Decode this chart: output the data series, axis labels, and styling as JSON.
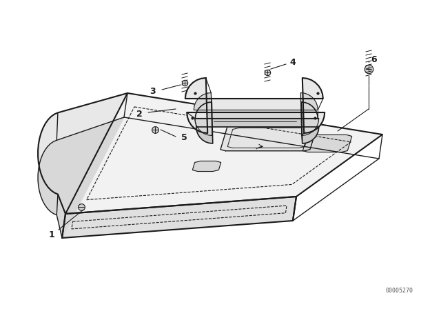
{
  "bg_color": "#ffffff",
  "line_color": "#1a1a1a",
  "fig_width": 6.4,
  "fig_height": 4.48,
  "dpi": 100,
  "watermark": "00005270"
}
